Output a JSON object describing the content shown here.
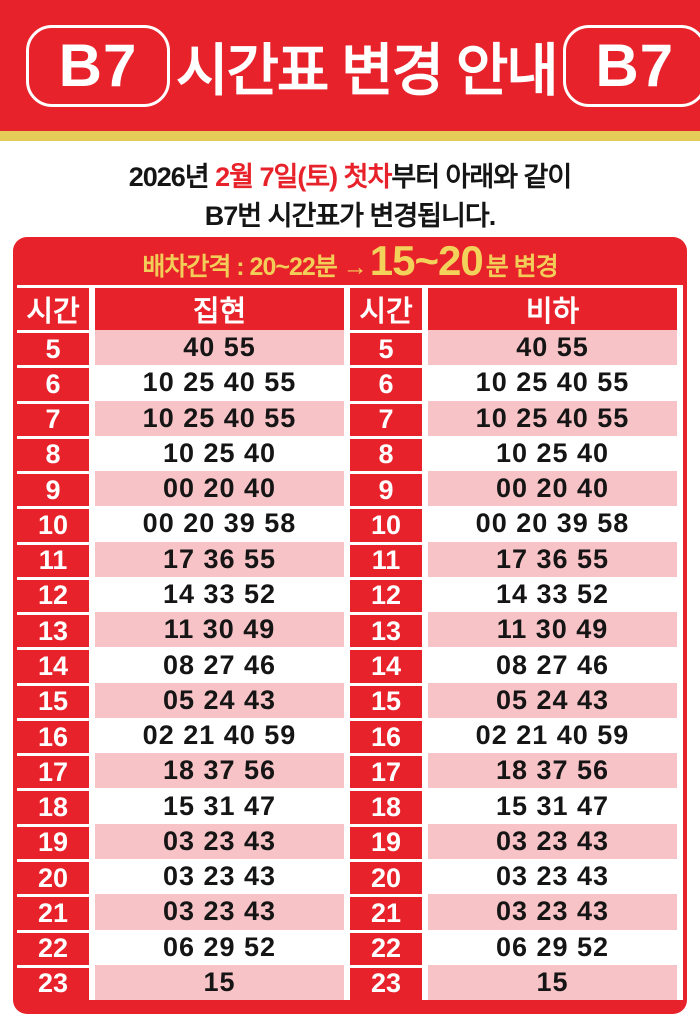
{
  "banner": {
    "badge_left": "B7",
    "badge_right": "B7",
    "title": "시간표 변경 안내"
  },
  "notice": {
    "line1_prefix": "2026년 ",
    "line1_highlight": "2월 7일(토) 첫차",
    "line1_suffix": "부터 아래와 같이",
    "line2": "B7번 시간표가 변경됩니다."
  },
  "interval": {
    "prefix": "배차간격 : 20~22분 → ",
    "big": "15~20",
    "suffix": "분 변경"
  },
  "table": {
    "columns": [
      "시간",
      "집현",
      "시간",
      "비하"
    ],
    "rows": [
      {
        "hour": "5",
        "jiphyeon": "40 55",
        "biha": "40 55"
      },
      {
        "hour": "6",
        "jiphyeon": "10 25 40 55",
        "biha": "10 25 40 55"
      },
      {
        "hour": "7",
        "jiphyeon": "10 25 40 55",
        "biha": "10 25 40 55"
      },
      {
        "hour": "8",
        "jiphyeon": "10 25 40",
        "biha": "10 25 40"
      },
      {
        "hour": "9",
        "jiphyeon": "00 20 40",
        "biha": "00 20 40"
      },
      {
        "hour": "10",
        "jiphyeon": "00 20 39 58",
        "biha": "00 20 39 58"
      },
      {
        "hour": "11",
        "jiphyeon": "17 36 55",
        "biha": "17 36 55"
      },
      {
        "hour": "12",
        "jiphyeon": "14 33 52",
        "biha": "14 33 52"
      },
      {
        "hour": "13",
        "jiphyeon": "11 30 49",
        "biha": "11 30 49"
      },
      {
        "hour": "14",
        "jiphyeon": "08 27 46",
        "biha": "08 27 46"
      },
      {
        "hour": "15",
        "jiphyeon": "05 24 43",
        "biha": "05 24 43"
      },
      {
        "hour": "16",
        "jiphyeon": "02 21 40 59",
        "biha": "02 21 40 59"
      },
      {
        "hour": "17",
        "jiphyeon": "18 37 56",
        "biha": "18 37 56"
      },
      {
        "hour": "18",
        "jiphyeon": "15 31 47",
        "biha": "15 31 47"
      },
      {
        "hour": "19",
        "jiphyeon": "03 23 43",
        "biha": "03 23 43"
      },
      {
        "hour": "20",
        "jiphyeon": "03 23 43",
        "biha": "03 23 43"
      },
      {
        "hour": "21",
        "jiphyeon": "03 23 43",
        "biha": "03 23 43"
      },
      {
        "hour": "22",
        "jiphyeon": "06 29 52",
        "biha": "06 29 52"
      },
      {
        "hour": "23",
        "jiphyeon": "15",
        "biha": "15"
      }
    ]
  },
  "colors": {
    "red": "#E8222A",
    "pink": "#F7C3C6",
    "gold_strip": "#E5CB58",
    "gold_text": "#F2CE58",
    "text_dark": "#151515",
    "white": "#FFFFFF"
  }
}
